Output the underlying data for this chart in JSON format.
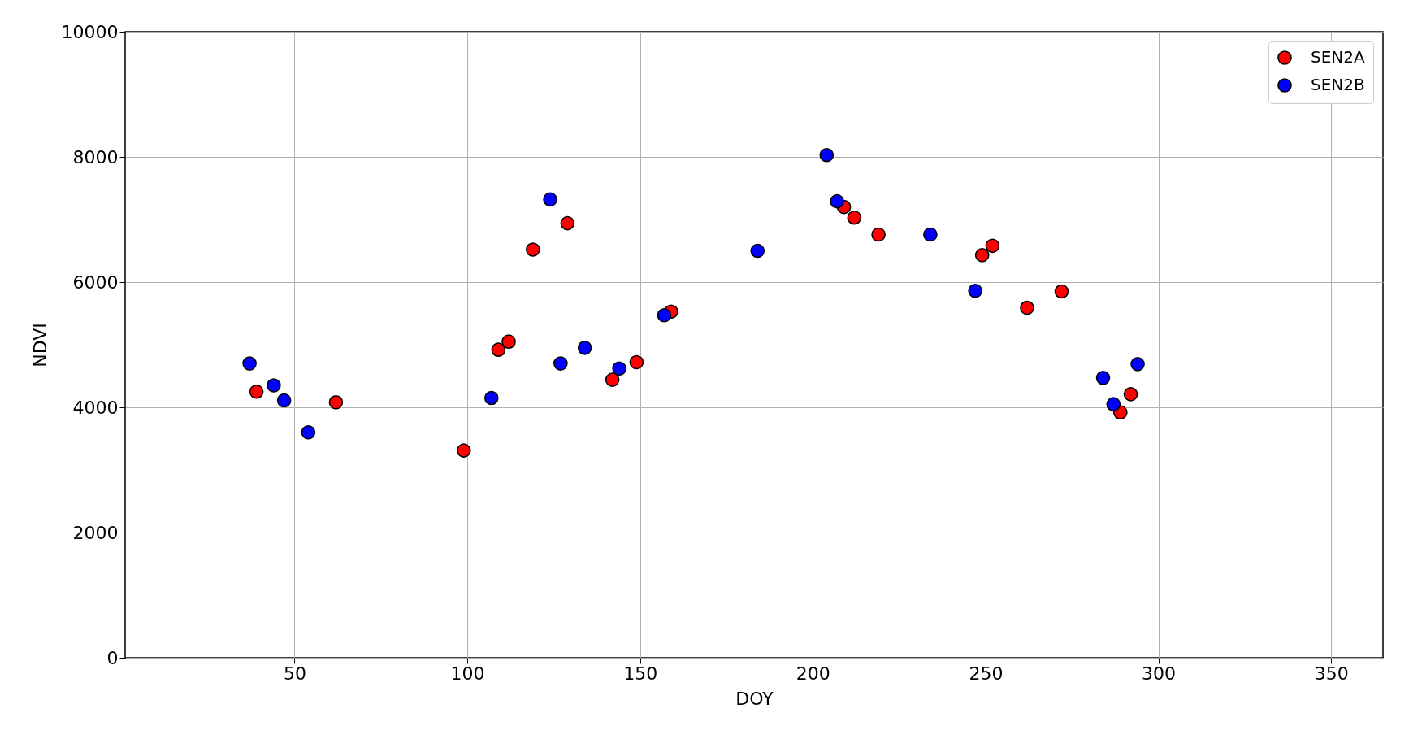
{
  "chart_data": {
    "type": "scatter",
    "xlabel": "DOY",
    "ylabel": "NDVI",
    "xlim": [
      1,
      365
    ],
    "ylim": [
      0,
      10000
    ],
    "xticks": [
      50,
      100,
      150,
      200,
      250,
      300,
      350
    ],
    "yticks": [
      0,
      2000,
      4000,
      6000,
      8000,
      10000
    ],
    "grid": true,
    "legend": "top right",
    "marker": "circle",
    "series": [
      {
        "name": "SEN2A",
        "color": "#ff0000",
        "x": [
          39,
          62,
          99,
          109,
          112,
          119,
          129,
          142,
          149,
          159,
          209,
          212,
          219,
          249,
          252,
          262,
          272,
          289,
          292
        ],
        "values": [
          4250,
          4080,
          3310,
          4920,
          5050,
          6520,
          6940,
          4440,
          4720,
          5530,
          7200,
          7030,
          6760,
          6430,
          6580,
          5590,
          5850,
          3920,
          4210
        ]
      },
      {
        "name": "SEN2B",
        "color": "#0000ff",
        "x": [
          37,
          44,
          47,
          54,
          107,
          124,
          127,
          134,
          144,
          157,
          184,
          204,
          207,
          234,
          247,
          284,
          287,
          294
        ],
        "values": [
          4700,
          4350,
          4110,
          3600,
          4150,
          7320,
          4700,
          4950,
          4620,
          5470,
          6500,
          8030,
          7290,
          6760,
          5860,
          4470,
          4050,
          4690
        ]
      }
    ]
  }
}
